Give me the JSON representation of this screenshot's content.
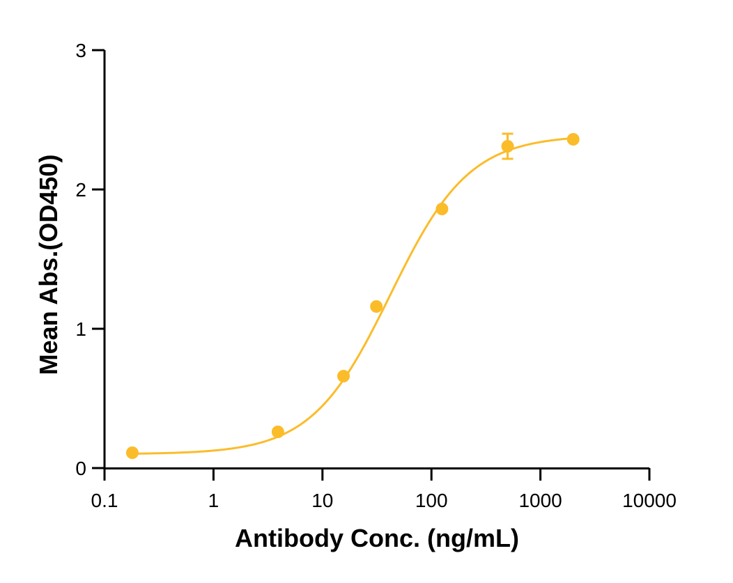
{
  "chart_data": {
    "type": "scatter",
    "title": "",
    "xlabel": "Antibody Conc. (ng/mL)",
    "ylabel": "Mean Abs.(OD450)",
    "xscale": "log",
    "xlim": [
      0.1,
      10000
    ],
    "ylim": [
      0,
      3
    ],
    "x_ticks": [
      0.1,
      1,
      10,
      100,
      1000,
      10000
    ],
    "x_tick_labels": [
      "0.1",
      "1",
      "10",
      "100",
      "1000",
      "10000"
    ],
    "y_ticks": [
      0,
      1,
      2,
      3
    ],
    "y_tick_labels": [
      "0",
      "1",
      "2",
      "3"
    ],
    "grid": false,
    "legend": "none",
    "color": "#fbbc2a",
    "series": [
      {
        "x": [
          0.18,
          3.9,
          15.6,
          31.25,
          125,
          500,
          2000
        ],
        "y": [
          0.11,
          0.26,
          0.66,
          1.16,
          1.86,
          2.31,
          2.36
        ],
        "error": [
          0,
          0,
          0,
          0,
          0,
          0.09,
          0
        ]
      }
    ],
    "fit": {
      "type": "4PL",
      "bottom": 0.1,
      "top": 2.39,
      "ec50": 42,
      "hill": 1.2
    }
  }
}
